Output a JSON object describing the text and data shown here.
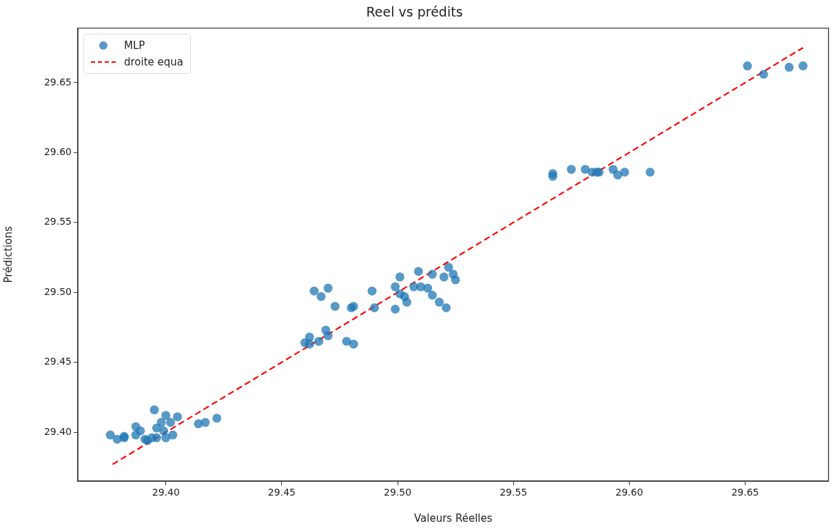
{
  "chart_data": {
    "type": "scatter",
    "title": "Reel vs prédits",
    "xlabel": "Valeurs Réelles",
    "ylabel": "Prédictions",
    "xlim": [
      29.362,
      29.686
    ],
    "ylim": [
      29.365,
      29.689
    ],
    "xticks": [
      {
        "value": 29.4,
        "label": "29.40"
      },
      {
        "value": 29.45,
        "label": "29.45"
      },
      {
        "value": 29.5,
        "label": "29.50"
      },
      {
        "value": 29.55,
        "label": "29.55"
      },
      {
        "value": 29.6,
        "label": "29.60"
      },
      {
        "value": 29.65,
        "label": "29.65"
      }
    ],
    "yticks": [
      {
        "value": 29.4,
        "label": "29.40"
      },
      {
        "value": 29.45,
        "label": "29.45"
      },
      {
        "value": 29.5,
        "label": "29.50"
      },
      {
        "value": 29.55,
        "label": "29.55"
      },
      {
        "value": 29.6,
        "label": "29.60"
      },
      {
        "value": 29.65,
        "label": "29.65"
      }
    ],
    "grid": false,
    "legend": "top left",
    "marker": "circle",
    "series": [
      {
        "name": "MLP",
        "color": "#1f77b4",
        "x": [
          29.376,
          29.379,
          29.382,
          29.382,
          29.387,
          29.389,
          29.387,
          29.391,
          29.392,
          29.394,
          29.395,
          29.396,
          29.396,
          29.398,
          29.399,
          29.4,
          29.402,
          29.4,
          29.403,
          29.405,
          29.414,
          29.417,
          29.422,
          29.46,
          29.462,
          29.462,
          29.466,
          29.469,
          29.47,
          29.464,
          29.467,
          29.47,
          29.473,
          29.48,
          29.481,
          29.478,
          29.481,
          29.489,
          29.49,
          29.499,
          29.499,
          29.501,
          29.503,
          29.504,
          29.501,
          29.507,
          29.51,
          29.513,
          29.515,
          29.518,
          29.521,
          29.515,
          29.52,
          29.525,
          29.509,
          29.522,
          29.524,
          29.567,
          29.567,
          29.575,
          29.581,
          29.584,
          29.586,
          29.587,
          29.593,
          29.595,
          29.598,
          29.609,
          29.651,
          29.658,
          29.669,
          29.675
        ],
        "values": [
          29.398,
          29.395,
          29.397,
          29.396,
          29.404,
          29.401,
          29.398,
          29.395,
          29.394,
          29.396,
          29.416,
          29.396,
          29.403,
          29.407,
          29.401,
          29.412,
          29.407,
          29.396,
          29.398,
          29.411,
          29.406,
          29.407,
          29.41,
          29.464,
          29.468,
          29.463,
          29.465,
          29.473,
          29.469,
          29.501,
          29.497,
          29.503,
          29.49,
          29.489,
          29.49,
          29.465,
          29.463,
          29.501,
          29.489,
          29.504,
          29.488,
          29.499,
          29.497,
          29.493,
          29.511,
          29.504,
          29.504,
          29.503,
          29.498,
          29.493,
          29.489,
          29.513,
          29.511,
          29.509,
          29.515,
          29.518,
          29.513,
          29.583,
          29.585,
          29.588,
          29.588,
          29.586,
          29.586,
          29.586,
          29.588,
          29.584,
          29.586,
          29.586,
          29.662,
          29.656,
          29.661,
          29.662
        ]
      },
      {
        "name": "droite equa",
        "type": "line",
        "color": "#ff0000",
        "line_style": "dashed",
        "marker": "none",
        "x": [
          29.377,
          29.675
        ],
        "values": [
          29.377,
          29.675
        ]
      }
    ]
  }
}
